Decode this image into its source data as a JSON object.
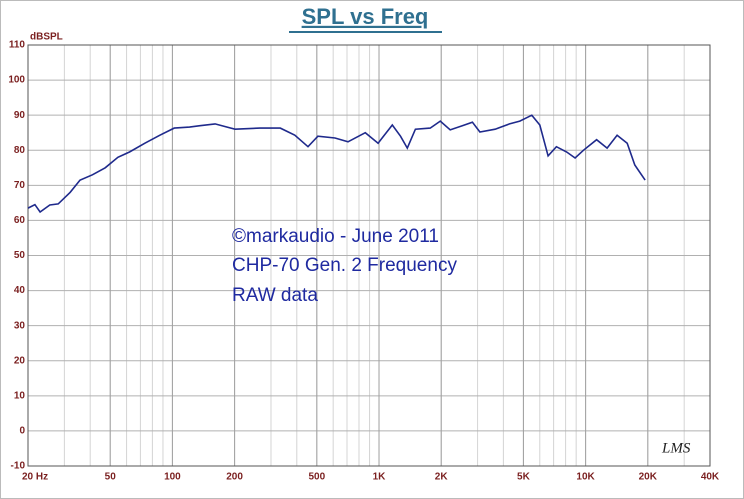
{
  "chart_data": {
    "type": "line",
    "title": "SPL vs Freq",
    "y_label": "dBSPL",
    "annotations": [
      "©markaudio - June 2011",
      "CHP-70 Gen. 2 Frequency",
      "RAW data"
    ],
    "logo": "LMS",
    "x": [
      20,
      21.6,
      22.9,
      25.5,
      28,
      32,
      35.7,
      41,
      47.3,
      54.5,
      62,
      73.6,
      87,
      102,
      121,
      136,
      161,
      201,
      265,
      333,
      391,
      453,
      506,
      612,
      708,
      858,
      990,
      1160,
      1270,
      1370,
      1500,
      1770,
      1980,
      2210,
      2530,
      2830,
      3080,
      3650,
      4280,
      4800,
      5490,
      6000,
      6580,
      7220,
      8100,
      8890,
      9760,
      11300,
      12700,
      14200,
      15900,
      17300,
      19400
    ],
    "values": [
      63.5,
      64.5,
      62.4,
      64.4,
      64.7,
      68,
      71.5,
      73,
      75,
      78,
      79.5,
      82,
      84.3,
      86.3,
      86.6,
      87,
      87.5,
      86,
      86.3,
      86.3,
      84.3,
      81,
      84,
      83.5,
      82.4,
      85,
      82,
      87.2,
      84,
      80.6,
      86,
      86.3,
      88.3,
      85.8,
      87,
      88,
      85.2,
      86,
      87.5,
      88.3,
      90,
      87.2,
      78.4,
      81,
      79.5,
      77.8,
      80,
      83,
      80.6,
      84.3,
      82,
      75.8,
      71.5
    ],
    "color": "#1f2a8c",
    "xscale": "log",
    "xlim": [
      20,
      40000
    ],
    "xticks": [
      {
        "value": 20,
        "label": "20 Hz"
      },
      50,
      100,
      200,
      500,
      {
        "value": 1000,
        "label": "1K"
      },
      {
        "value": 2000,
        "label": "2K"
      },
      {
        "value": 5000,
        "label": "5K"
      },
      {
        "value": 10000,
        "label": "10K"
      },
      {
        "value": 20000,
        "label": "20K"
      },
      {
        "value": 40000,
        "label": "40K"
      }
    ],
    "ylim": [
      -10,
      110
    ],
    "yticks": [
      -10,
      0,
      10,
      20,
      30,
      40,
      50,
      60,
      70,
      80,
      90,
      100,
      110
    ],
    "grid": true,
    "minor_grid": true
  }
}
